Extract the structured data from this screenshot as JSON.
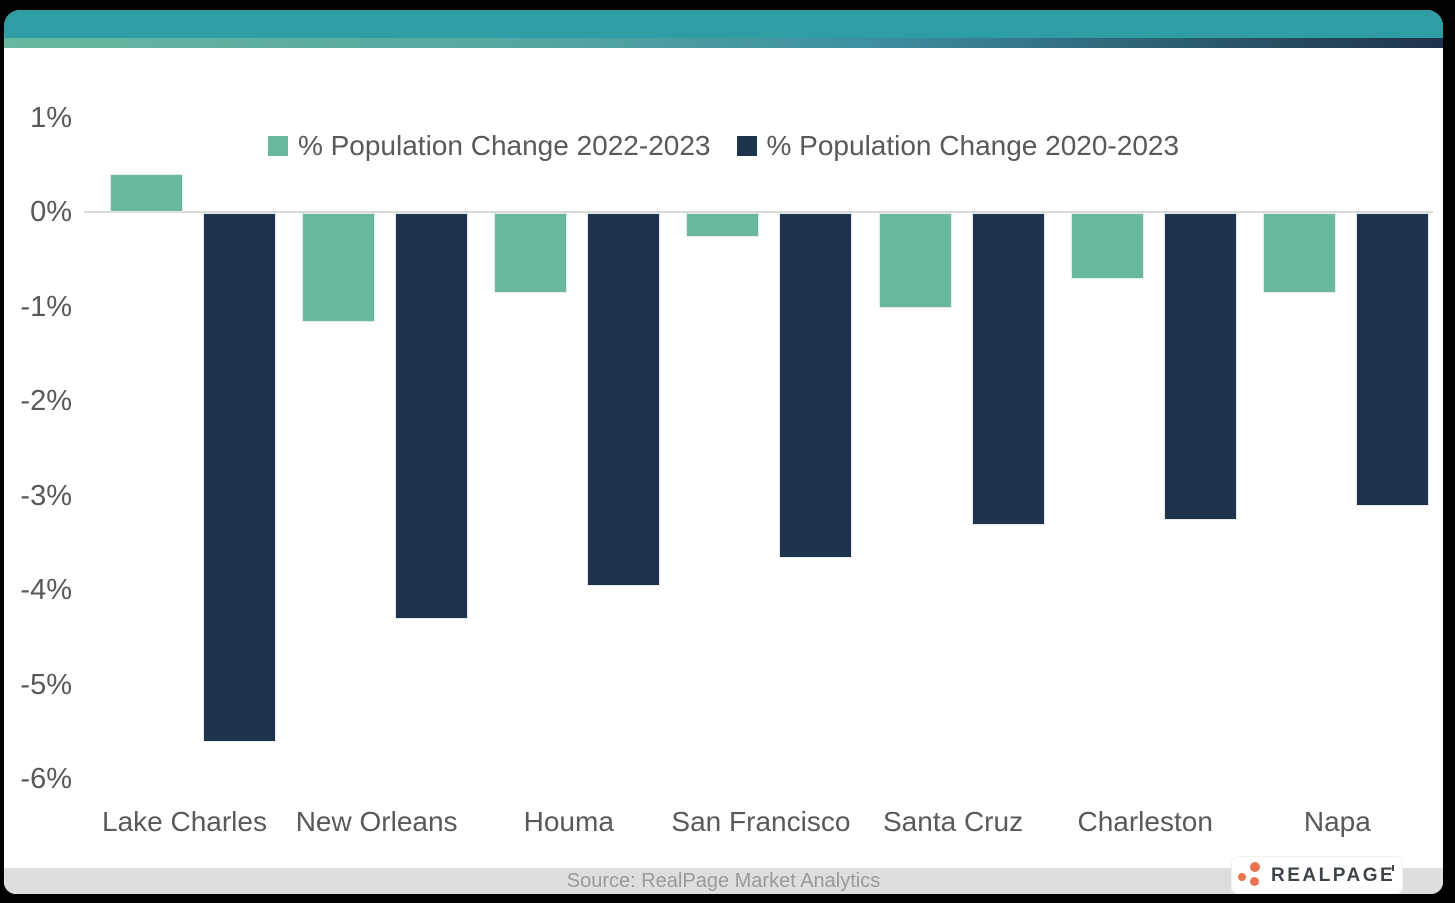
{
  "header": {
    "bar_color": "#2F9EA4",
    "strip_gradient_start": "#68B79F",
    "strip_gradient_end": "#1E3349"
  },
  "chart_data": {
    "type": "bar",
    "categories": [
      "Lake Charles",
      "New Orleans",
      "Houma",
      "San Francisco",
      "Santa Cruz",
      "Charleston",
      "Napa"
    ],
    "series": [
      {
        "name": "% Population Change 2022-2023",
        "color": "#68B79F",
        "values": [
          0.4,
          -1.15,
          -0.85,
          -0.25,
          -1.0,
          -0.7,
          -0.85
        ]
      },
      {
        "name": "% Population Change 2020-2023",
        "color": "#1E334C",
        "values": [
          -5.6,
          -4.3,
          -3.95,
          -3.65,
          -3.3,
          -3.25,
          -3.1
        ]
      }
    ],
    "title": "",
    "xlabel": "",
    "ylabel": "",
    "ylim": [
      -6,
      1
    ],
    "yticks": [
      {
        "label": "1%",
        "value": 1
      },
      {
        "label": "0%",
        "value": 0
      },
      {
        "label": "-1%",
        "value": -1
      },
      {
        "label": "-2%",
        "value": -2
      },
      {
        "label": "-3%",
        "value": -3
      },
      {
        "label": "-4%",
        "value": -4
      },
      {
        "label": "-5%",
        "value": -5
      },
      {
        "label": "-6%",
        "value": -6
      }
    ],
    "legend_position": "top",
    "grid": "zero-line-only",
    "axis_text_color": "#595959",
    "zero_line_color": "#D9D9D9"
  },
  "footer": {
    "source_text": "Source: RealPage Market Analytics",
    "strip_color": "#DEDEDE"
  },
  "logo": {
    "text": "REALPAGE",
    "dot_color": "#E9744F",
    "text_color": "#3E4449"
  }
}
